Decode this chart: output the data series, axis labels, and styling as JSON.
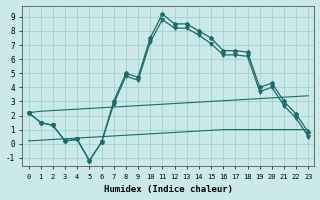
{
  "xlabel": "Humidex (Indice chaleur)",
  "xlim": [
    -0.5,
    23.5
  ],
  "ylim": [
    -1.6,
    9.8
  ],
  "xticks": [
    0,
    1,
    2,
    3,
    4,
    5,
    6,
    7,
    8,
    9,
    10,
    11,
    12,
    13,
    14,
    15,
    16,
    17,
    18,
    19,
    20,
    21,
    22,
    23
  ],
  "yticks": [
    -1,
    0,
    1,
    2,
    3,
    4,
    5,
    6,
    7,
    8,
    9
  ],
  "background_color": "#cce9e9",
  "line_color": "#1a6b6b",
  "grid_color": "#99cccc",
  "line_main1": [
    2.2,
    1.5,
    1.3,
    0.2,
    0.3,
    -1.2,
    0.1,
    3.0,
    5.0,
    4.7,
    7.5,
    9.2,
    8.5,
    8.5,
    8.0,
    7.5,
    6.6,
    6.6,
    6.5,
    4.0,
    4.3,
    3.0,
    2.1,
    0.8
  ],
  "line_main2": [
    2.2,
    1.5,
    1.3,
    0.2,
    0.3,
    -1.2,
    0.1,
    2.8,
    4.8,
    4.5,
    7.2,
    8.8,
    8.2,
    8.2,
    7.7,
    7.1,
    6.3,
    6.3,
    6.2,
    3.7,
    4.0,
    2.7,
    1.8,
    0.5
  ],
  "line_upper_straight": [
    2.2,
    2.3,
    2.35,
    2.4,
    2.45,
    2.5,
    2.55,
    2.6,
    2.65,
    2.7,
    2.75,
    2.8,
    2.85,
    2.9,
    2.95,
    3.0,
    3.05,
    3.1,
    3.15,
    3.2,
    3.25,
    3.3,
    3.35,
    3.4
  ],
  "line_lower_straight": [
    0.2,
    0.25,
    0.3,
    0.35,
    0.4,
    0.45,
    0.5,
    0.55,
    0.6,
    0.65,
    0.7,
    0.75,
    0.8,
    0.85,
    0.9,
    0.95,
    1.0,
    1.0,
    1.0,
    1.0,
    1.0,
    1.0,
    1.0,
    1.0
  ]
}
